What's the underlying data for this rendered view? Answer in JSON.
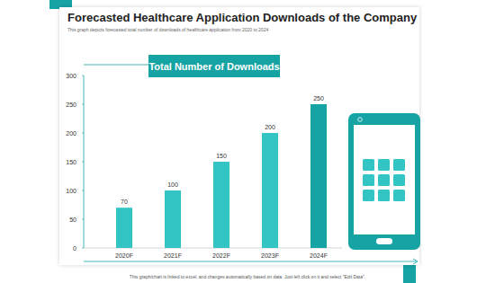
{
  "chart_data": {
    "type": "bar",
    "title": "Forecasted Healthcare Application Downloads of the Company",
    "subtitle": "This graph depicts forecasted total number of downloads of healthcare application from 2020 to 2024",
    "annotations": [
      "Total Number of Downloads",
      "This graph/chart is linked to excel, and changes automatically based on data. Just left click on it and select \"Edit Data\"."
    ],
    "categories": [
      "2020F",
      "2021F",
      "2022F",
      "2023F",
      "2024F"
    ],
    "values": [
      70,
      100,
      150,
      200,
      250
    ],
    "colors": [
      "#33c4c4",
      "#33c4c4",
      "#33c4c4",
      "#33c4c4",
      "#16a3a3"
    ],
    "ylim": [
      0,
      300
    ],
    "yticks": [
      0,
      50,
      100,
      150,
      200,
      250,
      300
    ],
    "grid": false,
    "data_labels": true
  }
}
